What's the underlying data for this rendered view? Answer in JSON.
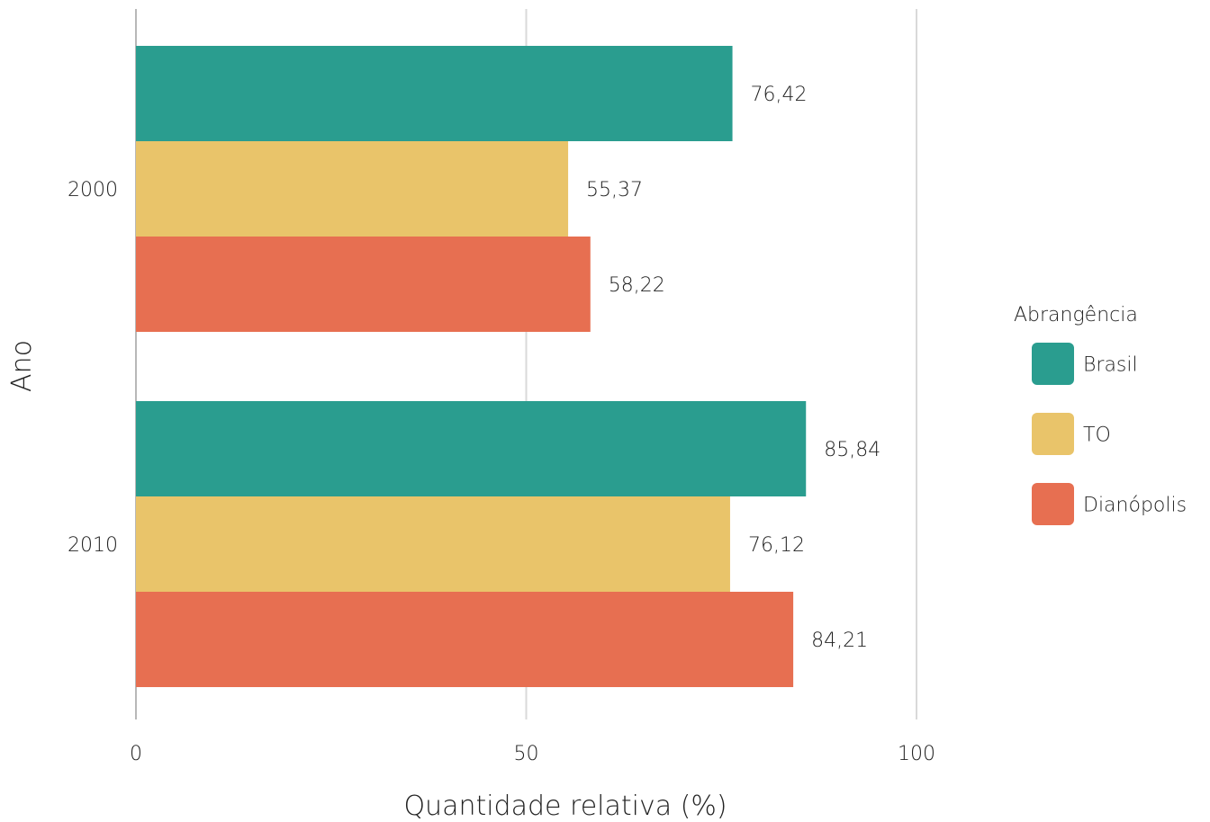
{
  "chart_data": {
    "type": "bar",
    "orientation": "horizontal",
    "categories": [
      "2000",
      "2010"
    ],
    "series": [
      {
        "name": "Brasil",
        "color": "#2a9d8f",
        "values": [
          76.42,
          85.84
        ],
        "labels": [
          "76,42",
          "85,84"
        ]
      },
      {
        "name": "TO",
        "color": "#e9c46a",
        "values": [
          55.37,
          76.12
        ],
        "labels": [
          "55,37",
          "76,12"
        ]
      },
      {
        "name": "Dianópolis",
        "color": "#e76f51",
        "values": [
          58.22,
          84.21
        ],
        "labels": [
          "58,22",
          "84,21"
        ]
      }
    ],
    "xlabel": "Quantidade relativa (%)",
    "ylabel": "Ano",
    "xlim": [
      0,
      100
    ],
    "xticks": [
      "0",
      "50",
      "100"
    ],
    "grid": "vertical",
    "legend": {
      "title": "Abrangência",
      "position": "right"
    }
  }
}
